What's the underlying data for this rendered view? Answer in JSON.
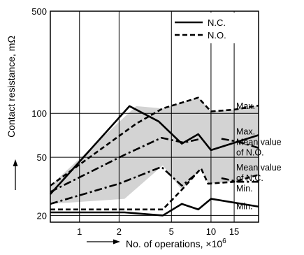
{
  "chart_data": {
    "type": "line",
    "title": "",
    "xlabel": "No. of operations, ×10",
    "xlabel_exponent": "6",
    "ylabel": "Contact resistance, mΩ",
    "x_scale": "log",
    "y_scale": "log",
    "xlim": [
      0.6,
      23
    ],
    "ylim": [
      18,
      500
    ],
    "x_ticks": [
      1,
      2,
      5,
      10,
      15
    ],
    "x_tick_labels": [
      "1",
      "2",
      "5",
      "10",
      "15"
    ],
    "y_ticks": [
      20,
      50,
      100,
      500
    ],
    "y_tick_labels": [
      "20",
      "50",
      "100",
      "500"
    ],
    "grid": true,
    "legend": {
      "position": "top-right",
      "entries": [
        {
          "label": "N.C.",
          "style": "solid"
        },
        {
          "label": "N.O.",
          "style": "dashed"
        }
      ]
    },
    "series": [
      {
        "relay": "N.O.",
        "stat": "max",
        "style": "dashed",
        "x": [
          0.6,
          2.7,
          4.3,
          8.0,
          10.0,
          15.0,
          23.0
        ],
        "y": [
          32,
          85,
          108,
          128,
          103,
          106,
          113
        ]
      },
      {
        "relay": "N.O.",
        "stat": "mean",
        "style": "dashdot",
        "x": [
          0.6,
          2.2,
          4.2,
          6.2,
          8.4,
          9.5,
          12.0,
          16.0,
          23.0
        ],
        "y": [
          29,
          52,
          68,
          63,
          67,
          null,
          67,
          64,
          58
        ]
      },
      {
        "relay": "N.O.",
        "stat": "min",
        "style": "dashed",
        "x": [
          0.6,
          4.3,
          6.0,
          8.4,
          9.5,
          15.0,
          23.0
        ],
        "y": [
          22,
          22,
          30,
          42,
          33,
          34,
          38
        ]
      },
      {
        "relay": "N.C.",
        "stat": "max",
        "style": "solid",
        "x": [
          0.6,
          2.4,
          4.0,
          6.0,
          8.0,
          10.0,
          23.0
        ],
        "y": [
          28,
          112,
          88,
          62,
          72,
          56,
          71
        ]
      },
      {
        "relay": "N.C.",
        "stat": "mean",
        "style": "dashdot",
        "x": [
          0.6,
          2.0,
          4.2,
          6.0,
          7.6,
          9.5,
          12.0,
          16.0,
          23.0
        ],
        "y": [
          24,
          33,
          43,
          32,
          38,
          null,
          36,
          34,
          34
        ]
      },
      {
        "relay": "N.C.",
        "stat": "min",
        "style": "solid",
        "x": [
          0.6,
          2.2,
          4.3,
          6.0,
          8.0,
          10.0,
          23.0
        ],
        "y": [
          21,
          21,
          20,
          24,
          22,
          26,
          23
        ]
      }
    ],
    "shaded_region": {
      "upper_x": [
        0.6,
        2.7,
        4.3,
        8.0,
        10.0,
        15.0,
        23.0
      ],
      "upper_y": [
        32,
        112,
        108,
        128,
        103,
        106,
        113
      ],
      "lower_x": [
        0.6,
        2.2,
        4.3,
        6.0,
        8.4,
        9.5,
        15.0,
        23.0
      ],
      "lower_y": [
        24,
        26,
        44,
        30,
        42,
        33,
        34,
        38
      ],
      "color": "#d3d3d3"
    },
    "annotations": [
      {
        "text": "Max.",
        "x": 23,
        "y": 112,
        "offset": 0
      },
      {
        "text": "Max.",
        "x": 23,
        "y": 75,
        "offset": 0
      },
      {
        "text": "Mean value",
        "x": 23,
        "y": 75,
        "offset": 1
      },
      {
        "text": "of N.O.",
        "x": 23,
        "y": 75,
        "offset": 2
      },
      {
        "text": "Mean value",
        "x": 23,
        "y": 36,
        "offset": -1
      },
      {
        "text": "of N.C.",
        "x": 23,
        "y": 36,
        "offset": 0
      },
      {
        "text": "Min.",
        "x": 23,
        "y": 36,
        "offset": 1
      },
      {
        "text": "Min.",
        "x": 23,
        "y": 23,
        "offset": 0
      }
    ],
    "colors": {
      "shade": "#d3d3d3",
      "line": "#000000",
      "background": "#ffffff"
    }
  }
}
